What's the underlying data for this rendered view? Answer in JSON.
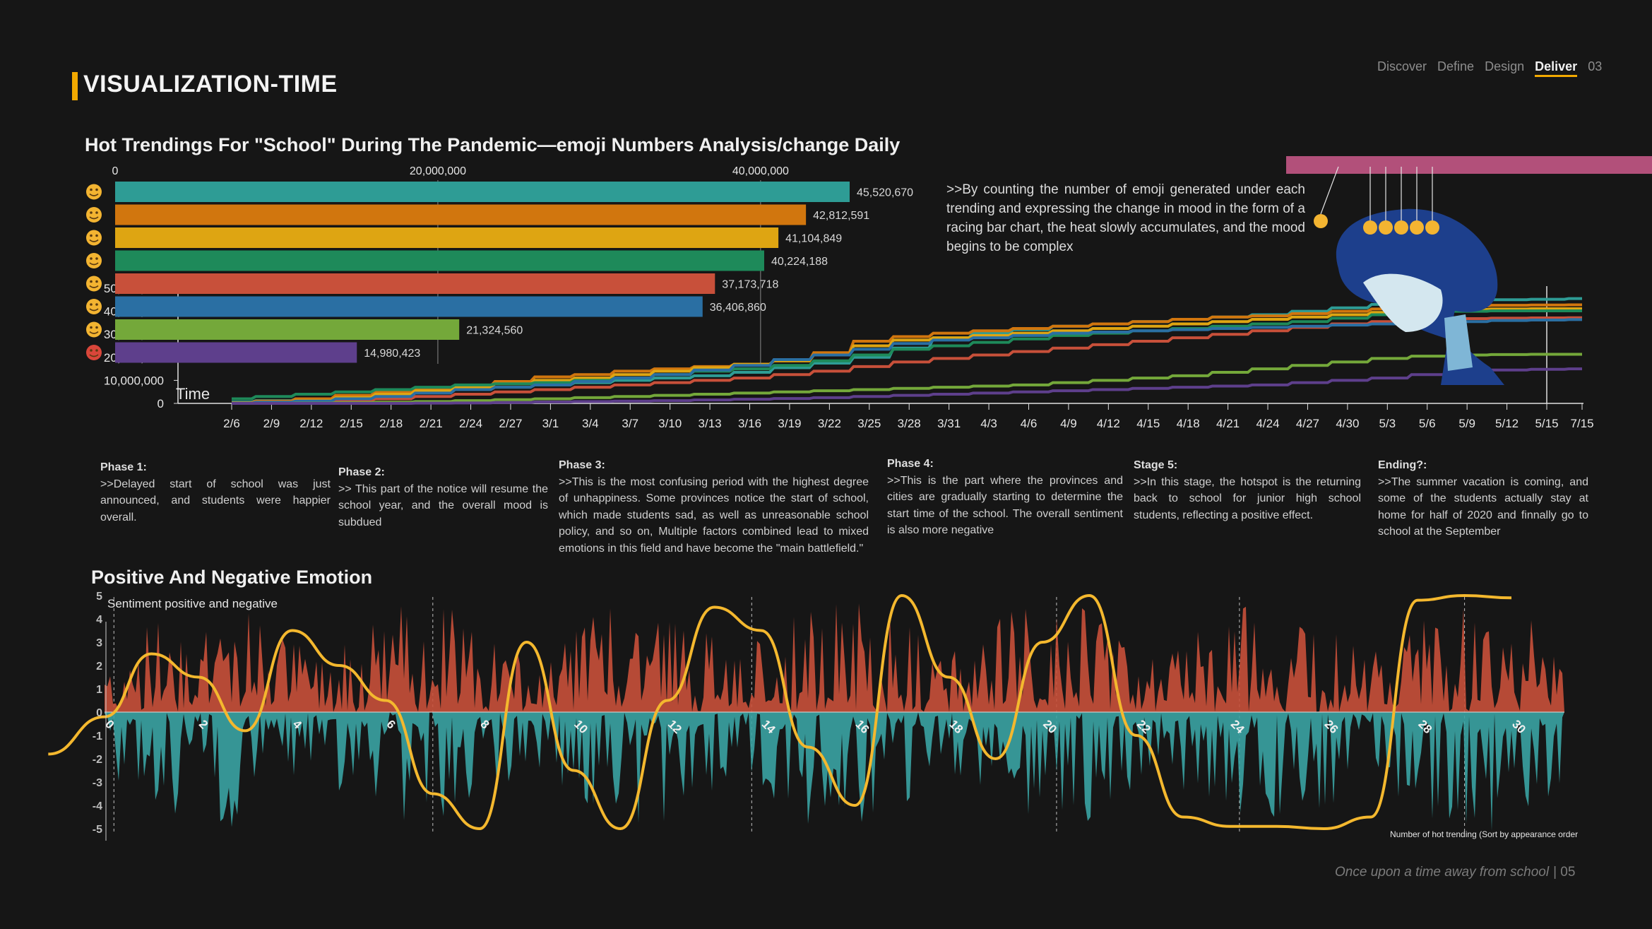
{
  "header": {
    "nav": [
      "Discover",
      "Define",
      "Design",
      "Deliver",
      "03"
    ],
    "nav_active": "Deliver",
    "title": "VISUALIZATION-TIME"
  },
  "note": ">>By counting the number of emoji generated under each trending and expressing the change in mood in the form of a racing bar chart, the heat slowly accumulates, and the mood begins to be complex",
  "phases": [
    {
      "title": "Phase 1:",
      "text": ">>Delayed start of school was just announced, and students were happier overall."
    },
    {
      "title": "Phase 2:",
      "text": ">> This part of the notice will resume the school year, and the overall mood is subdued"
    },
    {
      "title": "Phase 3:",
      "text": ">>This is the most confusing period with the highest degree of unhappiness. Some provinces notice the start of school, which made students sad, as well as unreasonable school policy, and so on, Multiple factors combined lead to mixed emotions in this field and have become the \"main battlefield.\""
    },
    {
      "title": "Phase 4:",
      "text": ">>This is the part where the provinces and cities are gradually starting to determine the start time of the school. The overall sentiment is also more negative"
    },
    {
      "title": "Stage 5:",
      "text": ">>In this stage, the hotspot is the returning back to school for junior high school students, reflecting a positive effect."
    },
    {
      "title": "Ending?:",
      "text": ">>The summer vacation is coming, and some of the students actually stay at home for half of 2020 and finnally go to school at the September"
    }
  ],
  "footer": {
    "text": "Once upon a time away from school",
    "page": "| 05"
  },
  "colors": {
    "accent": "#f2a900",
    "pink": "#b2507a",
    "positive": "#c8503a",
    "negative": "#3aa3a3",
    "curve": "#f4b82e"
  },
  "chart_data": [
    {
      "type": "bar",
      "title": "Hot Trendings For \"School\" During The Pandemic—emoji Numbers Analysis/change Daily",
      "orientation": "horizontal",
      "xticks": [
        "0",
        "20,000,000",
        "40,000,000"
      ],
      "xlim": [
        0,
        46000000
      ],
      "categories": [
        "crying-face",
        "grinning-face",
        "winking-face",
        "thinking-face",
        "tongue-face",
        "weary-face",
        "astonished-face",
        "angry-face"
      ],
      "values": [
        45520670,
        42812591,
        41104849,
        40224188,
        37173718,
        36406860,
        21324560,
        14980423
      ],
      "labels": [
        "45,520,670",
        "42,812,591",
        "41,104,849",
        "40,224,188",
        "37,173,718",
        "36,406,860",
        "21,324,560",
        "14,980,423"
      ],
      "colors": [
        "#2e9c95",
        "#d1760e",
        "#dea512",
        "#1e8a5a",
        "#c8503a",
        "#2a6fa3",
        "#74a83a",
        "#5e3f8c"
      ]
    },
    {
      "type": "line",
      "xlabel": "Time",
      "ylim": [
        0,
        50000000
      ],
      "yticks": [
        "0",
        "10,000,000",
        "20,000,000",
        "30,000,000",
        "40,000,000",
        "50,000,000"
      ],
      "x": [
        "2/6",
        "2/9",
        "2/12",
        "2/15",
        "2/18",
        "2/21",
        "2/24",
        "2/27",
        "3/1",
        "3/4",
        "3/7",
        "3/10",
        "3/13",
        "3/16",
        "3/19",
        "3/22",
        "3/25",
        "3/28",
        "3/31",
        "4/3",
        "4/6",
        "4/9",
        "4/12",
        "4/15",
        "4/18",
        "4/21",
        "4/24",
        "4/27",
        "4/30",
        "5/3",
        "5/6",
        "5/9",
        "5/12",
        "5/15",
        "7/15"
      ],
      "series": [
        {
          "color": "#2e9c95",
          "values": [
            0.6,
            1.2,
            2.0,
            3.0,
            4.0,
            5.0,
            6.0,
            7.0,
            8.0,
            9.0,
            10.0,
            11.0,
            12.0,
            13.5,
            15.5,
            17.5,
            20.0,
            24.0,
            28.5,
            30.5,
            32.0,
            33.5,
            34.5,
            35.5,
            36.5,
            37.5,
            38.5,
            40.0,
            41.5,
            43.0,
            44.0,
            44.5,
            45.0,
            45.2,
            45.5
          ]
        },
        {
          "color": "#d1760e",
          "values": [
            0.2,
            1.0,
            2.0,
            3.5,
            5.0,
            6.5,
            7.5,
            9.5,
            11.5,
            12.5,
            14.0,
            15.0,
            16.0,
            17.0,
            18.5,
            22.0,
            27.0,
            29.0,
            30.5,
            31.5,
            32.5,
            33.5,
            34.5,
            35.5,
            36.5,
            37.5,
            38.0,
            39.0,
            40.0,
            41.0,
            41.8,
            42.3,
            42.6,
            42.7,
            42.8
          ]
        },
        {
          "color": "#dea512",
          "values": [
            0.0,
            0.5,
            1.2,
            2.5,
            4.0,
            5.5,
            7.0,
            8.5,
            10.0,
            11.0,
            12.5,
            14.0,
            15.5,
            17.0,
            18.5,
            21.0,
            25.0,
            27.5,
            28.5,
            29.5,
            30.5,
            31.5,
            32.5,
            33.5,
            34.5,
            35.5,
            36.5,
            37.5,
            38.5,
            39.5,
            40.3,
            40.8,
            41.0,
            41.1,
            41.1
          ]
        },
        {
          "color": "#1e8a5a",
          "values": [
            2.0,
            3.0,
            4.0,
            5.0,
            6.0,
            7.0,
            8.0,
            8.5,
            9.0,
            10.0,
            11.0,
            12.5,
            14.0,
            15.0,
            16.5,
            18.5,
            21.0,
            23.5,
            25.0,
            26.5,
            28.0,
            29.5,
            30.5,
            31.5,
            32.5,
            33.5,
            34.5,
            35.5,
            37.0,
            38.5,
            39.5,
            40.0,
            40.2,
            40.2,
            40.2
          ]
        },
        {
          "color": "#c8503a",
          "values": [
            0.0,
            0.2,
            0.6,
            1.2,
            2.0,
            3.0,
            4.0,
            5.0,
            6.0,
            7.0,
            8.0,
            9.0,
            10.0,
            11.0,
            12.5,
            14.0,
            16.0,
            18.0,
            19.5,
            21.0,
            22.5,
            24.0,
            25.5,
            27.0,
            28.5,
            30.0,
            31.5,
            33.0,
            34.5,
            35.5,
            36.3,
            36.8,
            37.0,
            37.1,
            37.2
          ]
        },
        {
          "color": "#2a6fa3",
          "values": [
            0.0,
            0.5,
            1.0,
            2.0,
            3.0,
            4.5,
            6.0,
            7.0,
            8.0,
            9.5,
            11.0,
            12.5,
            14.5,
            16.5,
            19.0,
            21.0,
            23.5,
            26.0,
            27.5,
            28.5,
            29.5,
            30.5,
            31.0,
            31.5,
            32.0,
            32.5,
            33.0,
            33.5,
            34.0,
            34.5,
            35.0,
            35.5,
            36.0,
            36.2,
            36.4
          ]
        },
        {
          "color": "#74a83a",
          "values": [
            0.0,
            0.0,
            0.1,
            0.3,
            0.5,
            0.8,
            1.2,
            1.6,
            2.0,
            2.5,
            3.0,
            3.5,
            4.0,
            4.5,
            5.0,
            5.5,
            6.0,
            6.5,
            7.0,
            7.5,
            8.0,
            9.0,
            10.0,
            11.0,
            12.0,
            13.5,
            15.0,
            16.5,
            18.0,
            19.5,
            20.5,
            21.0,
            21.2,
            21.3,
            21.3
          ]
        },
        {
          "color": "#5e3f8c",
          "values": [
            0.0,
            0.0,
            0.0,
            0.0,
            0.0,
            0.1,
            0.2,
            0.4,
            0.6,
            0.8,
            1.0,
            1.2,
            1.5,
            1.8,
            2.1,
            2.5,
            3.0,
            3.5,
            4.0,
            4.5,
            5.0,
            5.5,
            6.0,
            6.5,
            7.0,
            7.5,
            8.0,
            9.0,
            10.0,
            11.0,
            12.5,
            13.5,
            14.5,
            14.8,
            15.0
          ]
        }
      ]
    },
    {
      "type": "area",
      "title": "Positive And Negative Emotion",
      "ylabel": "Sentiment positive and negative",
      "xlabel": "Number of hot trending (Sort by appearance order",
      "ylim": [
        -5,
        5
      ],
      "yticks": [
        "5",
        "4",
        "3",
        "2",
        "1",
        "0",
        "-1",
        "-2",
        "-3",
        "-4",
        "-5"
      ],
      "xticks": [
        "0",
        "2",
        "4",
        "6",
        "8",
        "10",
        "12",
        "14",
        "16",
        "18",
        "20",
        "22",
        "24",
        "26",
        "28",
        "30"
      ],
      "xlim": [
        0,
        30
      ],
      "curve_x": [
        -1.2,
        0,
        1,
        2,
        3,
        4,
        5,
        6,
        7,
        8,
        9,
        10,
        11,
        12,
        13,
        14,
        15,
        16,
        17,
        18,
        19,
        20,
        21,
        22,
        23,
        24,
        25,
        26,
        27,
        28,
        29,
        30
      ],
      "curve_y": [
        -1.8,
        -0.2,
        2.5,
        1.5,
        -0.8,
        3.5,
        2.0,
        0.5,
        -3.5,
        -5.0,
        3.0,
        -2.5,
        -5.0,
        0.5,
        4.5,
        3.5,
        -1.5,
        -4.0,
        5.0,
        1.5,
        -2.0,
        3.0,
        5.0,
        -1.0,
        -4.5,
        -4.9,
        -4.9,
        -5.0,
        -4.5,
        4.8,
        5.0,
        4.9
      ]
    }
  ]
}
